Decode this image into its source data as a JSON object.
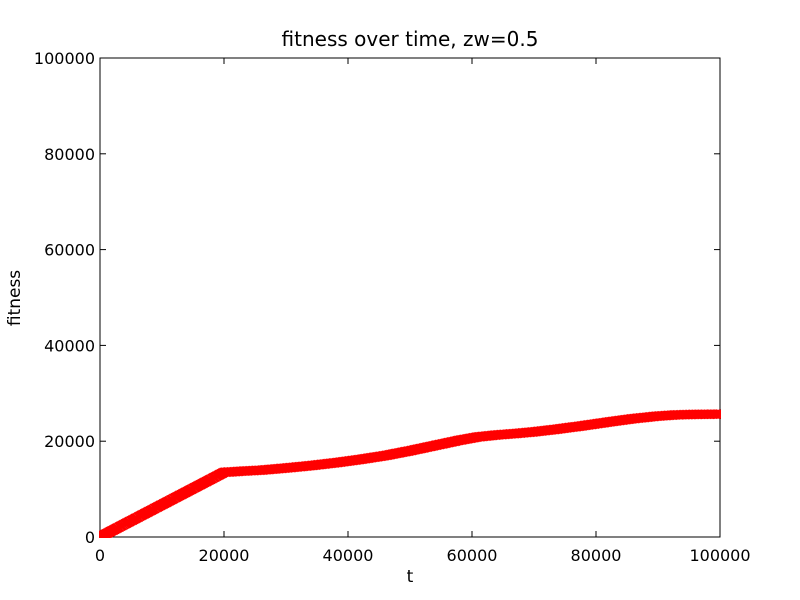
{
  "figure": {
    "background_color": "#ffffff",
    "frame_color": "#000000"
  },
  "chart_data": {
    "type": "line",
    "title": "fitness over time, zw=0.5",
    "xlabel": "t",
    "ylabel": "fitness",
    "xlim": [
      0,
      100000
    ],
    "ylim": [
      0,
      100000
    ],
    "xticks": [
      0,
      20000,
      40000,
      60000,
      80000,
      100000
    ],
    "yticks": [
      0,
      20000,
      40000,
      60000,
      80000,
      100000
    ],
    "xtick_labels": [
      "0",
      "20000",
      "40000",
      "60000",
      "80000",
      "100000"
    ],
    "ytick_labels": [
      "0",
      "20000",
      "40000",
      "60000",
      "80000",
      "100000"
    ],
    "grid": false,
    "legend": null,
    "tick_direction": "in",
    "series": [
      {
        "name": "fitness",
        "color": "#ff0000",
        "marker": "x",
        "x": [
          0,
          2000,
          4000,
          6000,
          8000,
          10000,
          12000,
          14000,
          16000,
          18000,
          20000,
          23000,
          26000,
          30000,
          34000,
          38000,
          42000,
          46000,
          50000,
          54000,
          58000,
          61000,
          64000,
          67000,
          70000,
          74000,
          78000,
          82000,
          86000,
          90000,
          93000,
          96000,
          98000,
          100000
        ],
        "y": [
          0,
          1350,
          2700,
          4050,
          5400,
          6750,
          8100,
          9450,
          10800,
          12150,
          13500,
          13750,
          13950,
          14400,
          14900,
          15500,
          16200,
          17000,
          18000,
          19100,
          20200,
          20900,
          21300,
          21600,
          21950,
          22550,
          23250,
          24000,
          24700,
          25250,
          25500,
          25600,
          25620,
          25650
        ]
      }
    ]
  }
}
